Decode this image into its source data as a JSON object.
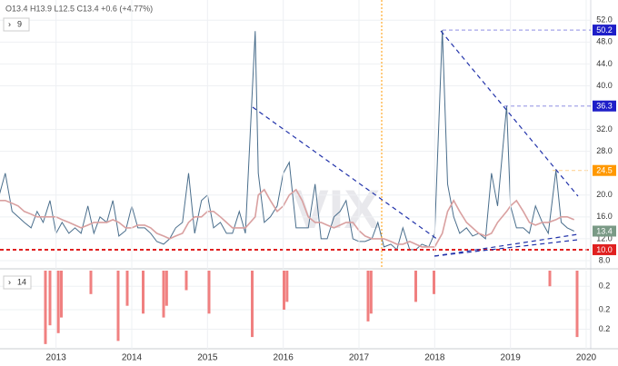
{
  "chart_data": [
    {
      "type": "line",
      "header": "O13.4 H13.9 L12.5 C13.4 +0.6 (+4.77%)",
      "period": 9,
      "watermark": "VIX",
      "xlim": [
        2012.26,
        2020.06
      ],
      "ylim": [
        6.5,
        55.7
      ],
      "yticks": [
        {
          "value": 52,
          "label": "52.0"
        },
        {
          "value": 48,
          "label": "48.0"
        },
        {
          "value": 44,
          "label": "44.0"
        },
        {
          "value": 40,
          "label": "40.0"
        },
        {
          "value": 32,
          "label": "32.0"
        },
        {
          "value": 28,
          "label": "28.0"
        },
        {
          "value": 20,
          "label": "20.0"
        },
        {
          "value": 16,
          "label": "16.0"
        },
        {
          "value": 12,
          "label": "12.0"
        },
        {
          "value": 8,
          "label": "8.0"
        }
      ],
      "levels": [
        {
          "value": 50.2,
          "color": "#1e1ec8"
        },
        {
          "value": 36.3,
          "color": "#1e1ec8"
        },
        {
          "value": 24.5,
          "color": "#ff9800"
        },
        {
          "value": 13.4,
          "color": "#7a9a86"
        },
        {
          "value": 10,
          "label": "10.0",
          "color": "#e02020"
        }
      ],
      "x": [
        2012.25,
        2012.33,
        2012.42,
        2012.5,
        2012.58,
        2012.67,
        2012.75,
        2012.83,
        2012.92,
        2013.0,
        2013.08,
        2013.17,
        2013.25,
        2013.33,
        2013.42,
        2013.5,
        2013.58,
        2013.67,
        2013.75,
        2013.83,
        2013.92,
        2014.0,
        2014.08,
        2014.17,
        2014.25,
        2014.33,
        2014.42,
        2014.5,
        2014.58,
        2014.67,
        2014.75,
        2014.83,
        2014.92,
        2015.0,
        2015.08,
        2015.17,
        2015.25,
        2015.33,
        2015.42,
        2015.5,
        2015.63,
        2015.67,
        2015.75,
        2015.83,
        2015.92,
        2016.0,
        2016.08,
        2016.17,
        2016.25,
        2016.33,
        2016.42,
        2016.5,
        2016.58,
        2016.67,
        2016.75,
        2016.83,
        2016.92,
        2017.0,
        2017.08,
        2017.17,
        2017.25,
        2017.33,
        2017.42,
        2017.5,
        2017.58,
        2017.67,
        2017.75,
        2017.83,
        2017.92,
        2018.0,
        2018.1,
        2018.17,
        2018.25,
        2018.33,
        2018.42,
        2018.5,
        2018.58,
        2018.67,
        2018.75,
        2018.83,
        2018.95,
        2019.0,
        2019.08,
        2019.17,
        2019.25,
        2019.33,
        2019.42,
        2019.5,
        2019.6,
        2019.67,
        2019.75,
        2019.84
      ],
      "series": [
        {
          "color": "#4a6e8c",
          "values": [
            20,
            24,
            17,
            16,
            15,
            14,
            17,
            15,
            19,
            13,
            15,
            13,
            14,
            13,
            18,
            13,
            16,
            15,
            19,
            12.5,
            13.5,
            18,
            14,
            14,
            13,
            11.5,
            11,
            12,
            14,
            15,
            24,
            13,
            19,
            20,
            14,
            15,
            13,
            13,
            17,
            13,
            50,
            24,
            15,
            16,
            18,
            24,
            26,
            14,
            14,
            14,
            22,
            12,
            12,
            16,
            17,
            19,
            12,
            11.5,
            11.5,
            12,
            15,
            10.5,
            11,
            10,
            14,
            10,
            10,
            11,
            10.5,
            13,
            50.2,
            22,
            16,
            13,
            14,
            12.5,
            13,
            12,
            24,
            18,
            36.3,
            18,
            14,
            14,
            13,
            18,
            15,
            13,
            24.5,
            15,
            14,
            13.4
          ]
        },
        {
          "color": "#d9a0a0",
          "values": [
            19,
            19,
            18.5,
            18,
            17,
            16.5,
            16,
            16,
            16,
            16,
            15.5,
            15,
            14.5,
            14,
            14.5,
            15,
            15,
            15,
            15.5,
            15,
            14,
            14,
            14.5,
            14.5,
            14,
            13,
            12.5,
            12,
            12.5,
            13,
            15,
            16,
            16,
            17,
            17,
            16,
            15,
            14,
            14,
            14,
            16,
            20,
            21,
            19,
            17,
            18,
            20,
            21,
            19,
            16,
            15,
            15,
            14.5,
            14,
            14.5,
            15,
            15,
            13.5,
            12.5,
            12,
            12,
            12,
            11.5,
            11,
            11,
            11.5,
            11,
            10.5,
            10.5,
            10.5,
            13,
            17,
            19,
            17,
            15,
            14,
            13,
            12.5,
            13,
            15,
            17,
            18,
            19,
            17,
            15,
            14.5,
            15,
            15,
            15.5,
            16,
            16,
            15.5
          ]
        }
      ]
    },
    {
      "type": "bar",
      "period": 14,
      "color": "#f08080",
      "xlim": [
        2012.26,
        2020.06
      ],
      "xticks": [
        2013,
        2014,
        2015,
        2016,
        2017,
        2018,
        2019,
        2020
      ],
      "ylim": [
        -1,
        0
      ],
      "yticks": [
        {
          "value": -0.2,
          "label": "0.2"
        },
        {
          "value": -0.5,
          "label": "0.2"
        },
        {
          "value": -0.75,
          "label": "0.2"
        }
      ],
      "x": [
        2012.86,
        2012.92,
        2013.03,
        2013.07,
        2013.46,
        2013.82,
        2013.94,
        2014.15,
        2014.42,
        2014.46,
        2014.72,
        2015.02,
        2015.59,
        2016.01,
        2016.05,
        2017.12,
        2017.16,
        2017.75,
        2017.99,
        2019.52,
        2019.88
      ],
      "values": [
        -0.94,
        -0.7,
        -0.8,
        -0.6,
        -0.3,
        -0.9,
        -0.45,
        -0.55,
        -0.6,
        -0.45,
        -0.25,
        -0.55,
        -0.85,
        -0.5,
        -0.4,
        -0.65,
        -0.55,
        -0.4,
        -0.3,
        -0.2,
        -0.85
      ]
    }
  ]
}
